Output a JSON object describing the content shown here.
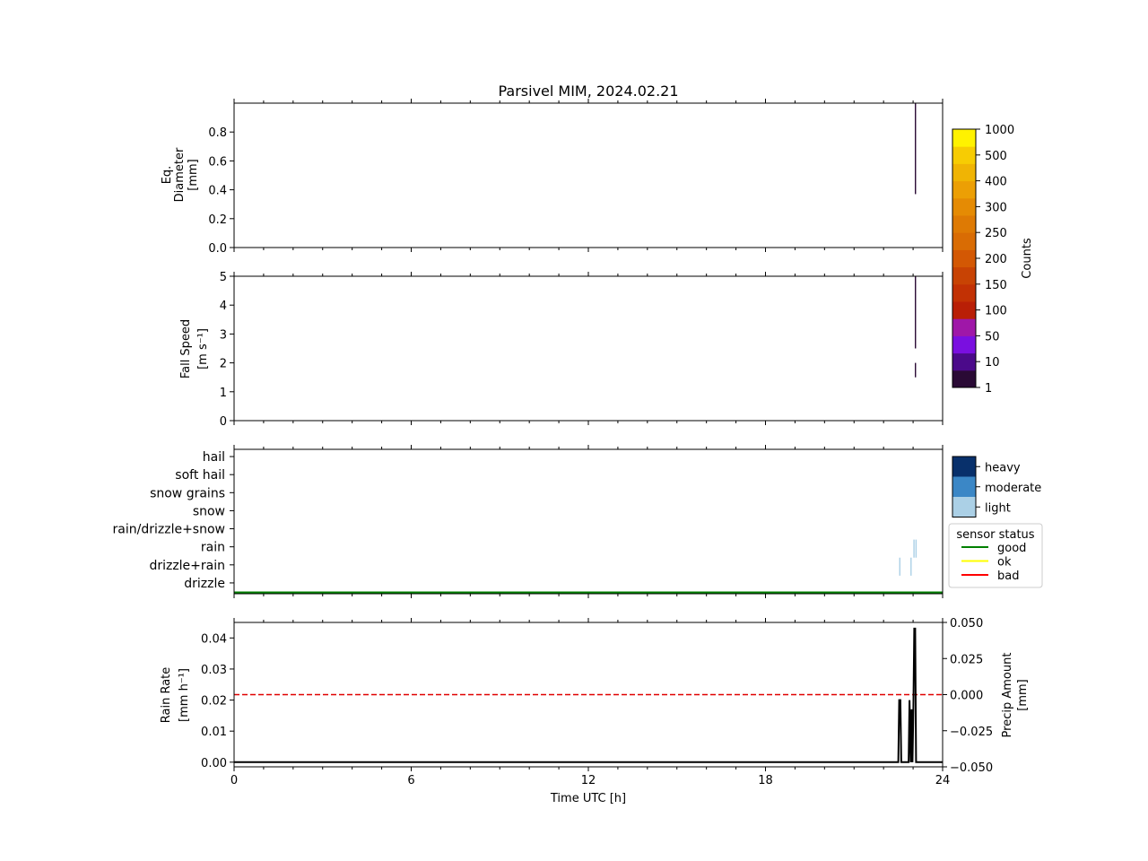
{
  "title": "Parsivel MIM, 2024.02.21",
  "x_axis": {
    "label": "Time UTC [h]",
    "ticks": [
      0,
      6,
      12,
      18,
      24
    ],
    "range": [
      0,
      24
    ]
  },
  "colorbar": {
    "label": "Counts",
    "levels": [
      "1",
      "10",
      "50",
      "100",
      "150",
      "200",
      "250",
      "300",
      "400",
      "500",
      "1000"
    ],
    "colors": [
      "#2a0a35",
      "#4b0a8a",
      "#7a0fe0",
      "#9f17a8",
      "#b91f06",
      "#c23104",
      "#c84304",
      "#d35804",
      "#d96c04",
      "#de7a04",
      "#e58b04",
      "#ec9f05",
      "#f0b404",
      "#f7cc03",
      "#fff200"
    ]
  },
  "intensity_legend": {
    "items": [
      {
        "label": "heavy",
        "color": "#08306b"
      },
      {
        "label": "moderate",
        "color": "#3b87c6"
      },
      {
        "label": "light",
        "color": "#abd0e6"
      }
    ]
  },
  "status_legend": {
    "title": "sensor status",
    "items": [
      {
        "label": "good",
        "color": "#008000"
      },
      {
        "label": "ok",
        "color": "#ffff00"
      },
      {
        "label": "bad",
        "color": "#ff0000"
      }
    ]
  },
  "chart_data": [
    {
      "type": "heatmap",
      "name": "diameter",
      "ylabel": [
        "Eq.",
        "Diameter",
        "[mm]"
      ],
      "ylim": [
        0,
        1.0
      ],
      "yticks": [
        0.0,
        0.2,
        0.4,
        0.6,
        0.8
      ],
      "ytick_labels": [
        "0.0",
        "0.2",
        "0.4",
        "0.6",
        "0.8"
      ],
      "cells": [
        {
          "t": 23.08,
          "y0": 0.37,
          "y1": 1.0,
          "color": "#2a0a35"
        }
      ]
    },
    {
      "type": "heatmap",
      "name": "fall_speed",
      "ylabel": [
        "Fall Speed",
        "[m s⁻¹]"
      ],
      "ylim": [
        0,
        5
      ],
      "yticks": [
        0,
        1,
        2,
        3,
        4,
        5
      ],
      "ytick_labels": [
        "0",
        "1",
        "2",
        "3",
        "4",
        "5"
      ],
      "cells": [
        {
          "t": 23.08,
          "y0": 2.5,
          "y1": 5.0,
          "color": "#2a0a35"
        },
        {
          "t": 23.08,
          "y0": 1.5,
          "y1": 2.0,
          "color": "#2a0a35"
        }
      ]
    },
    {
      "type": "heatmap",
      "name": "precip_type",
      "categories": [
        "drizzle",
        "drizzle+rain",
        "rain",
        "rain/drizzle+snow",
        "snow",
        "snow grains",
        "soft hail",
        "hail"
      ],
      "ylim": [
        -0.5,
        7.5
      ],
      "marks": [
        {
          "t": 22.55,
          "y0": 0.5,
          "y1": 1.5,
          "intensity": "light"
        },
        {
          "t": 22.93,
          "y0": 0.5,
          "y1": 1.5,
          "intensity": "light"
        },
        {
          "t": 23.03,
          "y0": 1.5,
          "y1": 2.5,
          "intensity": "light"
        },
        {
          "t": 23.1,
          "y0": 1.5,
          "y1": 2.5,
          "intensity": "light"
        }
      ],
      "status": {
        "value": "good",
        "t0": 0,
        "t1": 24
      }
    },
    {
      "type": "line",
      "name": "rain_rate",
      "ylabel": [
        "Rain Rate",
        "[mm h⁻¹]"
      ],
      "ylim": [
        -0.0015,
        0.045
      ],
      "yticks": [
        0.0,
        0.01,
        0.02,
        0.03,
        0.04
      ],
      "ytick_labels": [
        "0.00",
        "0.01",
        "0.02",
        "0.03",
        "0.04"
      ],
      "x": [
        0,
        22.5,
        22.53,
        22.57,
        22.6,
        22.85,
        22.88,
        22.92,
        22.95,
        22.98,
        23.01,
        23.04,
        23.07,
        23.1,
        23.13,
        24
      ],
      "y": [
        0,
        0,
        0.02,
        0.02,
        0,
        0,
        0.02,
        0,
        0.017,
        0,
        0.017,
        0.043,
        0.043,
        0,
        0,
        0
      ],
      "secondary": {
        "ylabel": [
          "Precip Amount",
          "[mm]"
        ],
        "ylim": [
          -0.05,
          0.05
        ],
        "yticks": [
          -0.05,
          -0.025,
          0.0,
          0.025,
          0.05
        ],
        "ytick_labels": [
          "−0.050",
          "−0.025",
          "0.000",
          "0.025",
          "0.050"
        ],
        "reference_line": 0.0,
        "reference_color": "#e00000"
      }
    }
  ]
}
